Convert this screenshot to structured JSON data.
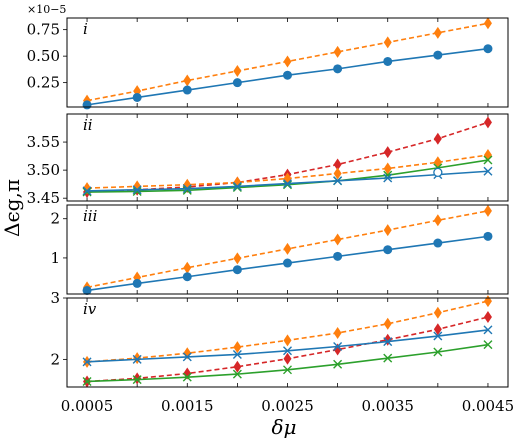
{
  "chart_data": {
    "type": "line",
    "ylabel": "Δϵg,π",
    "xlabel": "δμ",
    "x": [
      0.0005,
      0.001,
      0.0015,
      0.002,
      0.0025,
      0.003,
      0.0035,
      0.004,
      0.0045
    ],
    "xtick_labels": [
      "0.0005",
      "0.0015",
      "0.0025",
      "0.0035",
      "0.0045"
    ],
    "xlim": [
      0.0003,
      0.0047
    ],
    "panels": [
      {
        "label": "i",
        "ylim": [
          0.02,
          0.86
        ],
        "yticks": [
          0.25,
          0.5,
          0.75
        ],
        "ytick_labels": [
          "0.25",
          "0.50",
          "0.75"
        ],
        "multiplier": "×10−5",
        "series": [
          {
            "color": "#ff7f0e",
            "marker": "diamond",
            "dashed": true,
            "values": [
              0.08,
              0.17,
              0.27,
              0.36,
              0.45,
              0.54,
              0.63,
              0.72,
              0.81
            ]
          },
          {
            "color": "#1f77b4",
            "marker": "circle",
            "dashed": false,
            "values": [
              0.04,
              0.11,
              0.18,
              0.25,
              0.32,
              0.38,
              0.45,
              0.51,
              0.57
            ]
          }
        ]
      },
      {
        "label": "ii",
        "ylim": [
          3.445,
          3.6
        ],
        "yticks": [
          3.45,
          3.5,
          3.55
        ],
        "ytick_labels": [
          "3.45",
          "3.50",
          "3.55"
        ],
        "series": [
          {
            "color": "#d62728",
            "marker": "diamond",
            "dashed": true,
            "values": [
              3.461,
              3.465,
              3.47,
              3.478,
              3.492,
              3.51,
              3.532,
              3.556,
              3.585
            ]
          },
          {
            "color": "#ff7f0e",
            "marker": "diamond",
            "dashed": true,
            "values": [
              3.468,
              3.471,
              3.474,
              3.478,
              3.485,
              3.494,
              3.503,
              3.514,
              3.527
            ]
          },
          {
            "color": "#2ca02c",
            "marker": "x",
            "dashed": false,
            "values": [
              3.461,
              3.462,
              3.464,
              3.469,
              3.474,
              3.481,
              3.491,
              3.504,
              3.518
            ]
          },
          {
            "color": "#1f77b4",
            "marker": "x",
            "dashed": false,
            "values": [
              3.463,
              3.465,
              3.467,
              3.471,
              3.476,
              3.481,
              3.486,
              3.492,
              3.498
            ]
          },
          {
            "color": "#1f77b4",
            "marker": "circle-open",
            "dashed": false,
            "values": [
              null,
              null,
              null,
              null,
              null,
              null,
              null,
              3.496,
              null
            ]
          }
        ]
      },
      {
        "label": "iii",
        "ylim": [
          0.08,
          2.35
        ],
        "yticks": [
          1,
          2
        ],
        "ytick_labels": [
          "1",
          "2"
        ],
        "series": [
          {
            "color": "#ff7f0e",
            "marker": "diamond",
            "dashed": true,
            "values": [
              0.25,
              0.5,
              0.75,
              0.99,
              1.23,
              1.47,
              1.71,
              1.96,
              2.2
            ]
          },
          {
            "color": "#1f77b4",
            "marker": "circle",
            "dashed": false,
            "values": [
              0.17,
              0.35,
              0.52,
              0.7,
              0.87,
              1.04,
              1.21,
              1.38,
              1.55
            ]
          }
        ]
      },
      {
        "label": "iv",
        "ylim": [
          1.55,
          3.0
        ],
        "yticks": [
          2,
          3
        ],
        "ytick_labels": [
          "2",
          "3"
        ],
        "series": [
          {
            "color": "#ff7f0e",
            "marker": "diamond",
            "dashed": true,
            "values": [
              1.96,
              2.02,
              2.1,
              2.2,
              2.31,
              2.43,
              2.58,
              2.76,
              2.95
            ]
          },
          {
            "color": "#d62728",
            "marker": "diamond",
            "dashed": true,
            "values": [
              1.64,
              1.69,
              1.77,
              1.88,
              2.01,
              2.16,
              2.32,
              2.49,
              2.69
            ]
          },
          {
            "color": "#1f77b4",
            "marker": "x",
            "dashed": false,
            "values": [
              1.96,
              2.0,
              2.04,
              2.08,
              2.14,
              2.21,
              2.29,
              2.38,
              2.48
            ]
          },
          {
            "color": "#2ca02c",
            "marker": "x",
            "dashed": false,
            "values": [
              1.64,
              1.67,
              1.71,
              1.76,
              1.83,
              1.92,
              2.02,
              2.12,
              2.24
            ]
          }
        ]
      }
    ]
  }
}
